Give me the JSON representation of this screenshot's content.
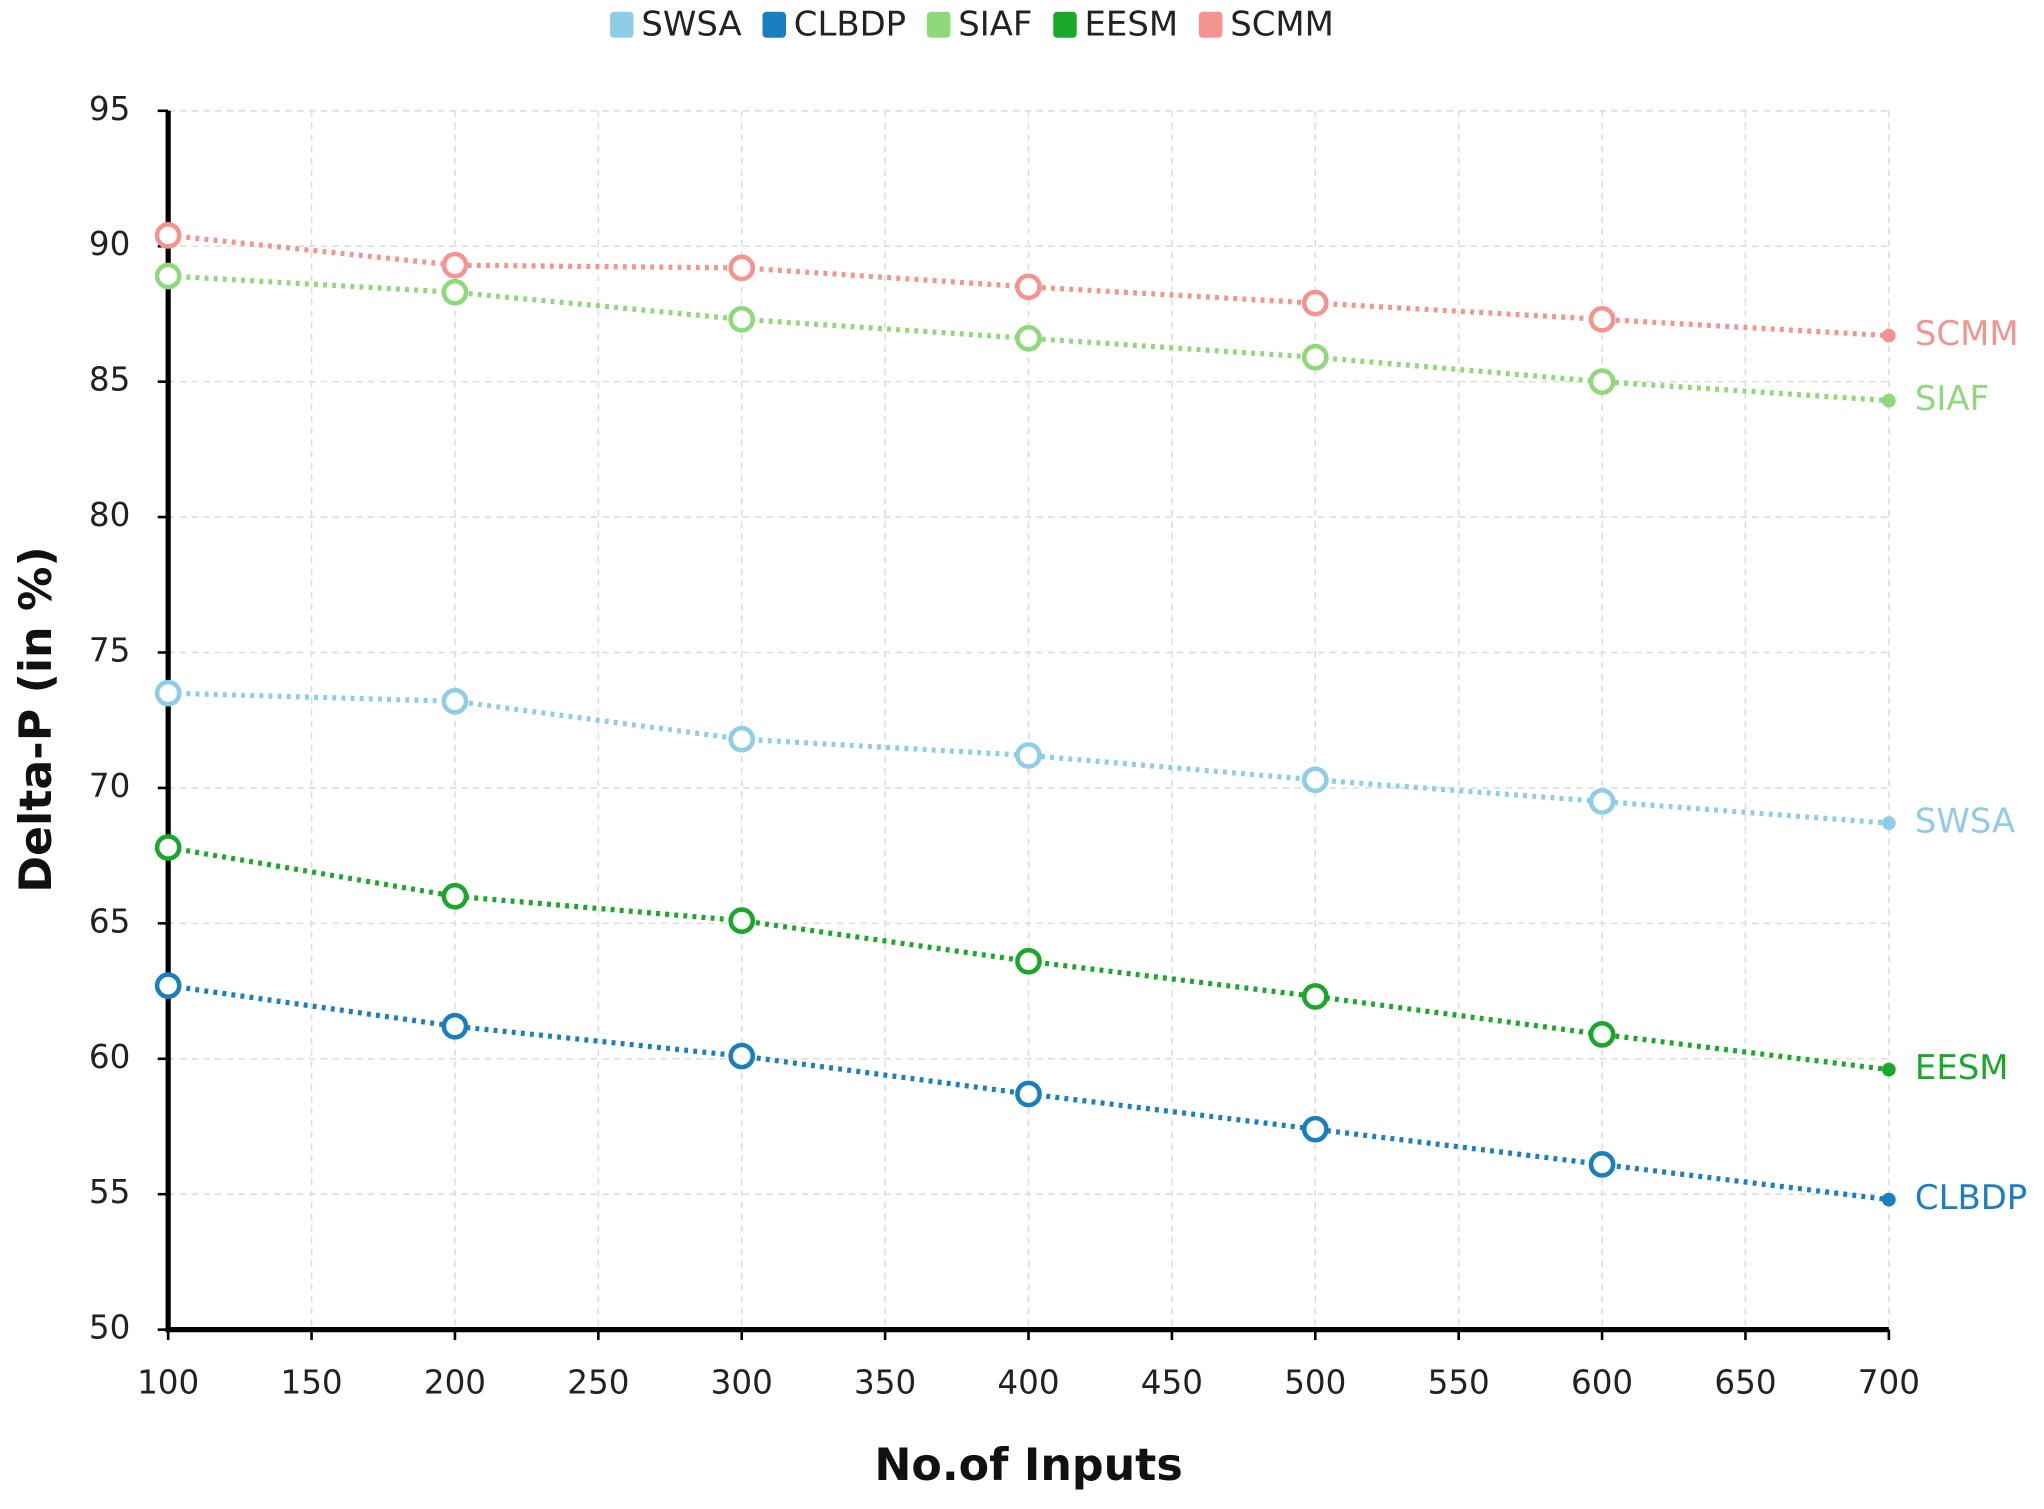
{
  "chart_data": {
    "type": "line",
    "xlabel": "No.of Inputs",
    "ylabel": "Delta-P (in %)",
    "x": [
      100,
      200,
      300,
      400,
      500,
      600,
      700
    ],
    "xlim": [
      100,
      700
    ],
    "xticks": [
      100,
      150,
      200,
      250,
      300,
      350,
      400,
      450,
      500,
      550,
      600,
      650,
      700
    ],
    "ylim": [
      50,
      95
    ],
    "yticks": [
      50,
      55,
      60,
      65,
      70,
      75,
      80,
      85,
      90,
      95
    ],
    "grid": true,
    "legend": "top",
    "series": [
      {
        "name": "SWSA",
        "color": "#8fcde6",
        "values": [
          73.5,
          73.2,
          71.8,
          71.2,
          70.3,
          69.5,
          68.7
        ]
      },
      {
        "name": "CLBDP",
        "color": "#1a7fc0",
        "values": [
          62.7,
          61.2,
          60.1,
          58.7,
          57.4,
          56.1,
          54.8
        ]
      },
      {
        "name": "SIAF",
        "color": "#8fd97a",
        "values": [
          88.9,
          88.3,
          87.3,
          86.6,
          85.9,
          85.0,
          84.3
        ]
      },
      {
        "name": "EESM",
        "color": "#1aa82b",
        "values": [
          67.8,
          66.0,
          65.1,
          63.6,
          62.3,
          60.9,
          59.6
        ]
      },
      {
        "name": "SCMM",
        "color": "#f4938f",
        "values": [
          90.4,
          89.3,
          89.2,
          88.5,
          87.9,
          87.3,
          86.7
        ]
      }
    ]
  }
}
